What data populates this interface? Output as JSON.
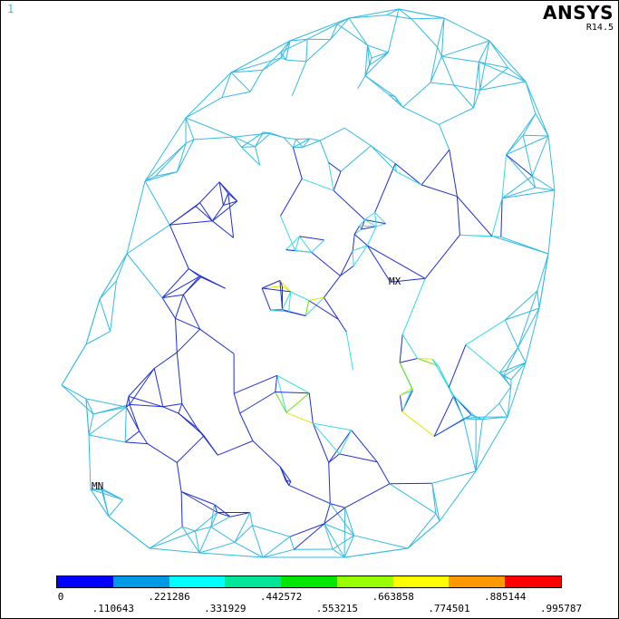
{
  "window_number": "1",
  "brand": "ANSYS",
  "version": "R14.5",
  "markers": {
    "max": "MX",
    "min": "MN"
  },
  "legend": {
    "colors": [
      "#0000ff",
      "#0099e6",
      "#00ffff",
      "#00e699",
      "#00e600",
      "#99ff00",
      "#ffff00",
      "#ff9900",
      "#ff0000"
    ],
    "ticks": [
      "0",
      ".110643",
      ".221286",
      ".331929",
      ".442572",
      ".553215",
      ".663858",
      ".774501",
      ".885144",
      ".995787"
    ]
  },
  "mesh_colors": {
    "outer": "#33bbe6",
    "inner": "#1f2fd6",
    "mid": "#33dde6",
    "hot": "#66e600",
    "warm": "#e6e600"
  }
}
